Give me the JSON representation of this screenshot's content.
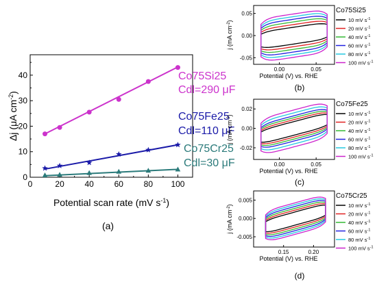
{
  "chart_data": [
    {
      "panel": "(a)",
      "type": "scatter",
      "xlabel": "Potential scan rate (mV s",
      "xlabel_sup": "-1",
      "xlabel_close": ")",
      "ylabel": "Δj (μA cm",
      "ylabel_sup": "-2",
      "ylabel_close": ")",
      "xlim": [
        0,
        110
      ],
      "ylim": [
        0,
        48
      ],
      "xticks": [
        0,
        20,
        40,
        60,
        80,
        100
      ],
      "yticks": [
        0,
        10,
        20,
        30,
        40
      ],
      "series": [
        {
          "name": "Co75Si25",
          "annotation": "Cdl=290 μF",
          "color": "#cc33cc",
          "marker": "circle",
          "x": [
            10,
            20,
            40,
            60,
            80,
            100
          ],
          "y": [
            17.0,
            19.5,
            25.5,
            30.5,
            37.5,
            43.0
          ],
          "fit": [
            [
              10,
              17.0
            ],
            [
              100,
              43.2
            ]
          ]
        },
        {
          "name": "Co75Fe25",
          "annotation": "Cdl=110 μF",
          "color": "#1a1aa8",
          "marker": "star",
          "x": [
            10,
            20,
            40,
            60,
            80,
            100
          ],
          "y": [
            3.5,
            4.5,
            5.7,
            9.0,
            10.7,
            12.7
          ],
          "fit": [
            [
              10,
              3.2
            ],
            [
              100,
              12.7
            ]
          ]
        },
        {
          "name": "Co75Cr25",
          "annotation": "Cdl=30 μF",
          "color": "#2a7a7a",
          "marker": "triangle",
          "x": [
            10,
            20,
            40,
            60,
            80,
            100
          ],
          "y": [
            0.8,
            1.0,
            1.7,
            2.2,
            2.6,
            3.1
          ],
          "fit": [
            [
              10,
              0.6
            ],
            [
              100,
              3.1
            ]
          ]
        }
      ]
    },
    {
      "panel": "(b)",
      "type": "line",
      "title": "Co75Si25",
      "xlabel": "Potential (V) vs. RHE",
      "ylabel": "j (mA cm",
      "ylabel_sup": "-2",
      "ylabel_close": ")",
      "xlim": [
        -0.035,
        0.075
      ],
      "ylim": [
        -0.065,
        0.068
      ],
      "xticks": [
        0.0,
        0.05
      ],
      "xtick_labels": [
        "0.00",
        "0.05"
      ],
      "yticks": [
        -0.05,
        0.0,
        0.05
      ],
      "ytick_labels": [
        "-0.05",
        "0.00",
        "0.05"
      ],
      "xrange": [
        -0.025,
        0.065
      ],
      "amplitudes": [
        0.019,
        0.025,
        0.031,
        0.037,
        0.043,
        0.049
      ],
      "slope": 0.25
    },
    {
      "panel": "(c)",
      "type": "line",
      "title": "Co75Fe25",
      "xlabel": "Potential (V) vs. RHE",
      "ylabel": "j (mA cm",
      "ylabel_sup": "-2",
      "ylabel_close": ")",
      "xlim": [
        -0.035,
        0.075
      ],
      "ylim": [
        -0.032,
        0.03
      ],
      "xticks": [
        0.0,
        0.05
      ],
      "xtick_labels": [
        "0.00",
        "0.05"
      ],
      "yticks": [
        -0.02,
        0.0,
        0.02
      ],
      "ytick_labels": [
        "-0.02",
        "0.00",
        "0.02"
      ],
      "xrange": [
        -0.025,
        0.065
      ],
      "amplitudes": [
        0.007,
        0.009,
        0.011,
        0.013,
        0.016,
        0.019
      ],
      "slope": 0.2
    },
    {
      "panel": "(d)",
      "type": "line",
      "title": "Co75Cr25",
      "xlabel": "Potential (V) vs. RHE",
      "ylabel": "j (mA cm",
      "ylabel_sup": "-2",
      "ylabel_close": ")",
      "xlim": [
        0.1,
        0.235
      ],
      "ylim": [
        -0.0078,
        0.0075
      ],
      "xticks": [
        0.15,
        0.2
      ],
      "xtick_labels": [
        "0.15",
        "0.20"
      ],
      "yticks": [
        -0.005,
        0.0,
        0.005
      ],
      "ytick_labels": [
        "-0.005",
        "0.000",
        "0.005"
      ],
      "xrange": [
        0.12,
        0.22
      ],
      "amplitudes": [
        0.0018,
        0.0023,
        0.0028,
        0.0033,
        0.0038,
        0.0043
      ],
      "slope": 0.045
    }
  ],
  "cv_legend": [
    {
      "label": "10 mV s",
      "sup": "-1",
      "color": "#000000"
    },
    {
      "label": "20 mV s",
      "sup": "-1",
      "color": "#e02020"
    },
    {
      "label": "40 mV s",
      "sup": "-1",
      "color": "#33b833"
    },
    {
      "label": "60 mV s",
      "sup": "-1",
      "color": "#2020e0"
    },
    {
      "label": "80 mV s",
      "sup": "-1",
      "color": "#22c8e0"
    },
    {
      "label": "100 mV s",
      "sup": "-1",
      "color": "#cc22cc"
    }
  ]
}
